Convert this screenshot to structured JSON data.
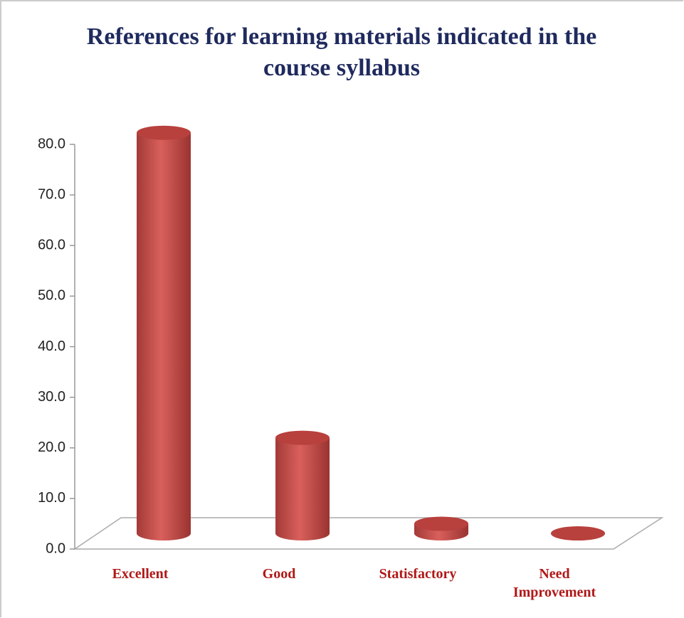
{
  "chart_data": {
    "type": "bar3d",
    "title": "References for learning materials indicated in the course syllabus",
    "categories": [
      "Excellent",
      "Good",
      "Statisfactory",
      "Need Improvement"
    ],
    "values": [
      79.2,
      18.9,
      1.9,
      0
    ],
    "color": "#c0504d",
    "ylim": [
      0,
      80
    ],
    "yticks": [
      {
        "value": 0,
        "label": "0.0"
      },
      {
        "value": 10,
        "label": "10.0"
      },
      {
        "value": 20,
        "label": "20.0"
      },
      {
        "value": 30,
        "label": "30.0"
      },
      {
        "value": 40,
        "label": "40.0"
      },
      {
        "value": 50,
        "label": "50.0"
      },
      {
        "value": 60,
        "label": "60.0"
      },
      {
        "value": 70,
        "label": "70.0"
      },
      {
        "value": 80,
        "label": "80.0"
      }
    ]
  }
}
